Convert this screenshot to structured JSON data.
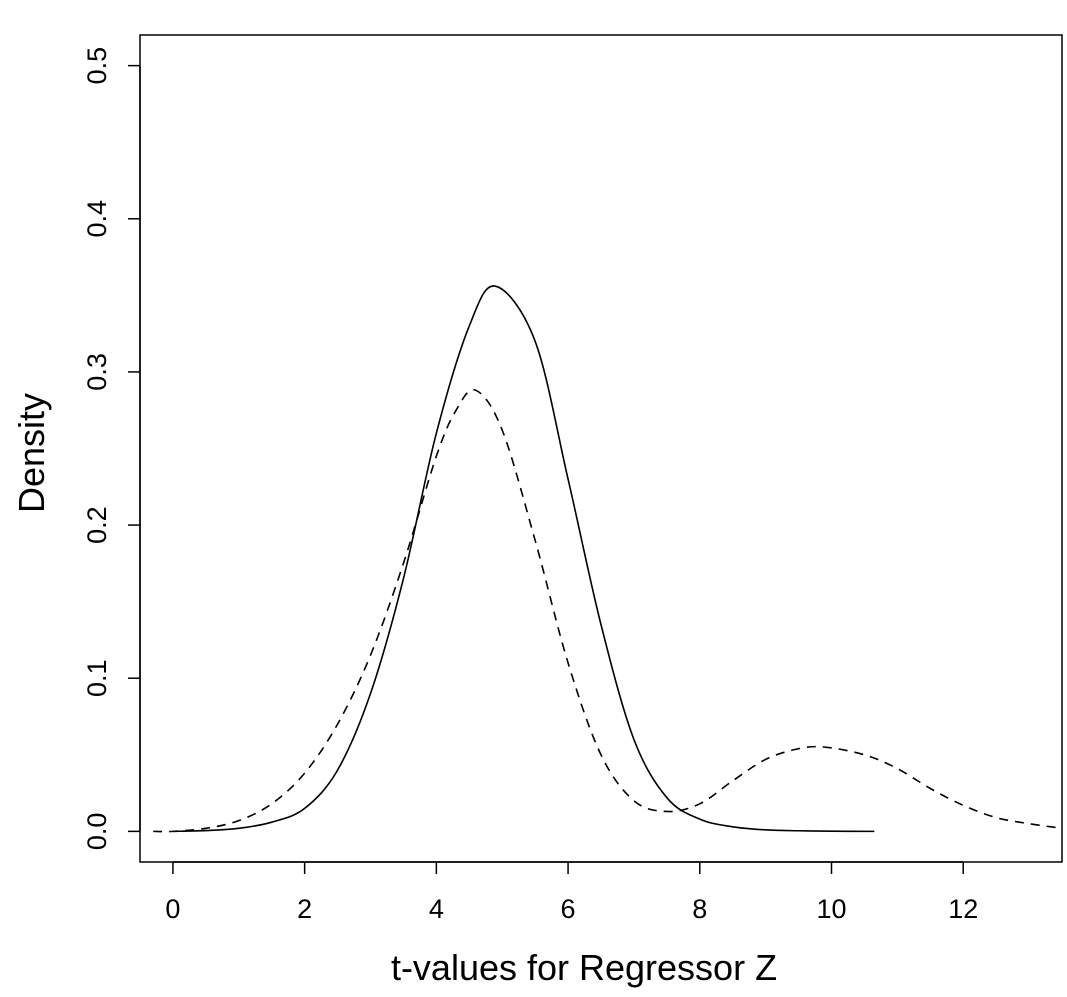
{
  "chart_data": {
    "type": "line",
    "title": "",
    "xlabel": "t-values for Regressor Z",
    "ylabel": "Density",
    "xlim": [
      -0.5,
      13.5
    ],
    "ylim": [
      -0.02,
      0.52
    ],
    "x_ticks": [
      0,
      2,
      4,
      6,
      8,
      10,
      12
    ],
    "x_tick_labels": [
      "0",
      "2",
      "4",
      "6",
      "8",
      "10",
      "12"
    ],
    "y_ticks": [
      0.0,
      0.1,
      0.2,
      0.3,
      0.4,
      0.5
    ],
    "y_tick_labels": [
      "0.0",
      "0.1",
      "0.2",
      "0.3",
      "0.4",
      "0.5"
    ],
    "grid": false,
    "legend": "none",
    "series": [
      {
        "style": "solid",
        "x": [
          0,
          0.5,
          1,
          1.5,
          2,
          2.5,
          3,
          3.5,
          4,
          4.5,
          4.9,
          5.5,
          6,
          6.5,
          7,
          7.5,
          8,
          8.5,
          9,
          9.5,
          10,
          10.65
        ],
        "y": [
          0.0,
          0.0005,
          0.002,
          0.006,
          0.015,
          0.04,
          0.09,
          0.165,
          0.26,
          0.33,
          0.356,
          0.32,
          0.23,
          0.135,
          0.06,
          0.022,
          0.008,
          0.003,
          0.001,
          0.0004,
          0.0001,
          0.0
        ]
      },
      {
        "style": "dashed",
        "x": [
          -0.3,
          0,
          0.5,
          1,
          1.5,
          2,
          2.5,
          3,
          3.5,
          4,
          4.3,
          4.6,
          5,
          5.5,
          6,
          6.5,
          7,
          7.5,
          8,
          8.5,
          9,
          9.5,
          9.9,
          10.5,
          11,
          11.5,
          12,
          12.5,
          13,
          13.5
        ],
        "y": [
          0.0,
          0.0,
          0.002,
          0.007,
          0.018,
          0.038,
          0.07,
          0.115,
          0.175,
          0.245,
          0.275,
          0.288,
          0.262,
          0.19,
          0.11,
          0.05,
          0.02,
          0.013,
          0.018,
          0.033,
          0.047,
          0.054,
          0.055,
          0.05,
          0.041,
          0.028,
          0.017,
          0.009,
          0.005,
          0.002
        ]
      }
    ]
  }
}
